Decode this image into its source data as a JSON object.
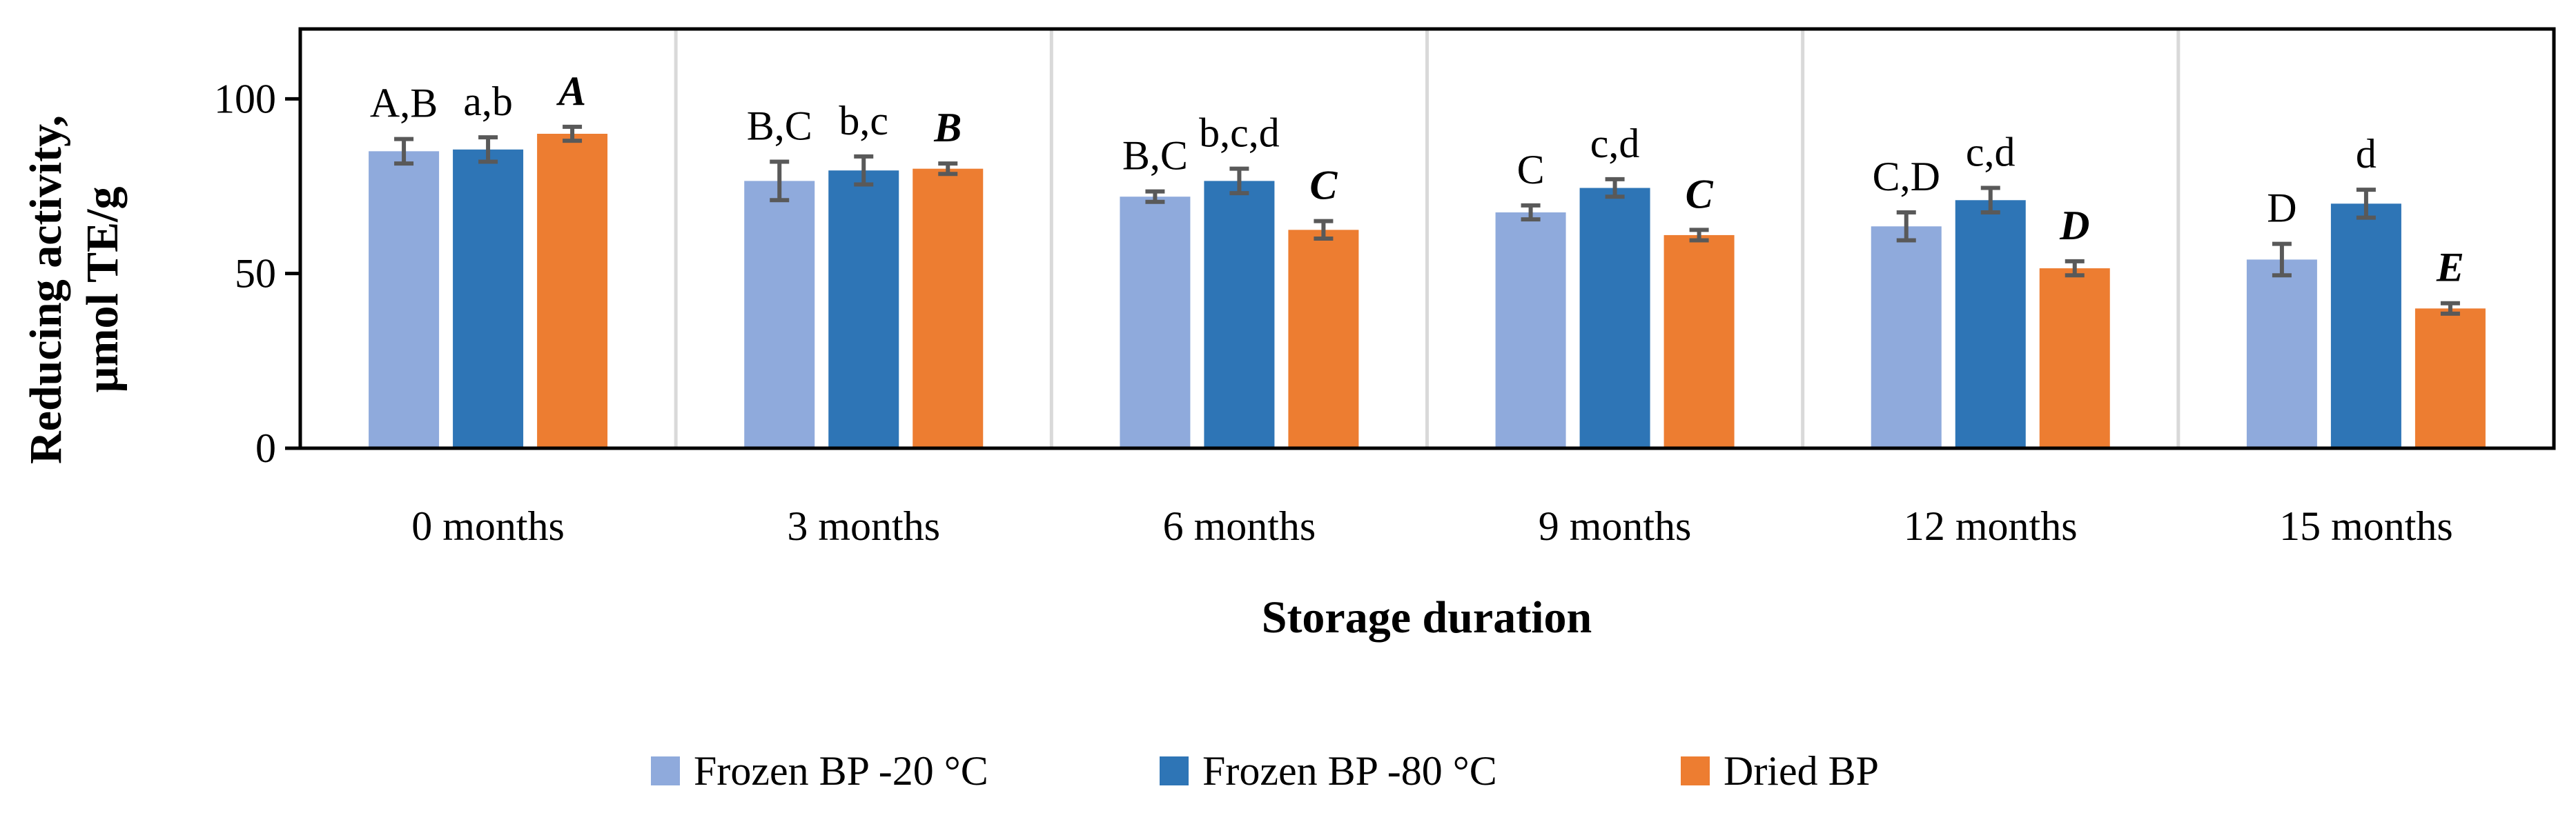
{
  "chart_data": {
    "type": "bar",
    "categories": [
      "0 months",
      "3 months",
      "6 months",
      "9 months",
      "12 months",
      "15 months"
    ],
    "series": [
      {
        "name": "Frozen BP -20 °C",
        "color": "#8faadc",
        "values": [
          85,
          76.5,
          72,
          67.5,
          63.5,
          54
        ],
        "errors": [
          3.5,
          5.5,
          1.5,
          2,
          4,
          4.5
        ],
        "labels": [
          "A,B",
          "B,C",
          "B,C",
          "C",
          "C,D",
          "D"
        ]
      },
      {
        "name": "Frozen BP -80 °C",
        "color": "#2e75b6",
        "values": [
          85.5,
          79.5,
          76.5,
          74.5,
          71,
          70
        ],
        "errors": [
          3.5,
          4,
          3.5,
          2.5,
          3.5,
          4
        ],
        "labels": [
          "a,b",
          "b,c",
          "b,c,d",
          "c,d",
          "c,d",
          "d"
        ]
      },
      {
        "name": "Dried BP",
        "color": "#ed7d31",
        "values": [
          90,
          80,
          62.5,
          61,
          51.5,
          40
        ],
        "errors": [
          2,
          1.5,
          2.5,
          1.5,
          2,
          1.5
        ],
        "labels": [
          "A",
          "B",
          "C",
          "C",
          "D",
          "E"
        ]
      }
    ],
    "title": "",
    "xlabel": "Storage duration",
    "ylabel": "Reducing activity, µmol TE/g",
    "ylabel_lines": [
      "Reducing activity,",
      "µmol TE/g"
    ],
    "ylim": [
      0,
      120
    ],
    "yticks": [
      0,
      50,
      100
    ],
    "grid": "vertical separators between groups",
    "legend_position": "bottom",
    "error_bar_color": "#595959"
  }
}
